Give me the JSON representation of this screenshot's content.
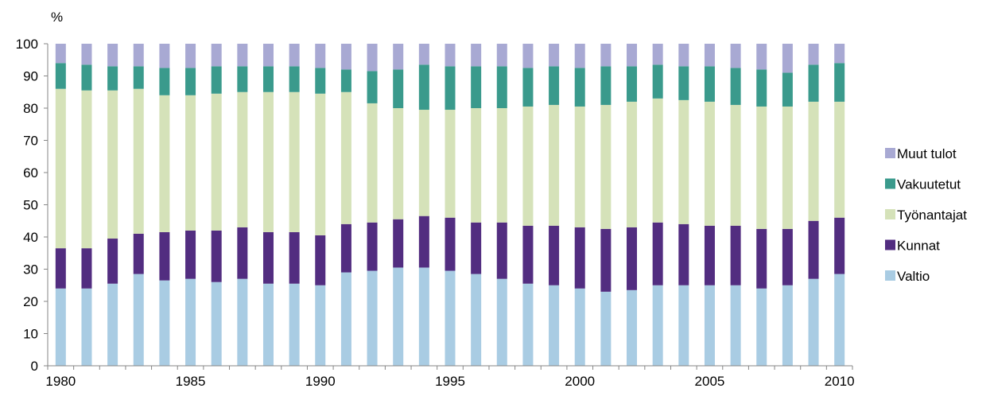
{
  "chart_data": {
    "type": "bar",
    "stacked": true,
    "percent_stacked": true,
    "ylabel": "%",
    "ylim": [
      0,
      100
    ],
    "yticks": [
      0,
      10,
      20,
      30,
      40,
      50,
      60,
      70,
      80,
      90,
      100
    ],
    "xtick_labels": [
      "1980",
      "1985",
      "1990",
      "1995",
      "2000",
      "2005",
      "2010"
    ],
    "grid": false,
    "legend_position": "right",
    "categories": [
      "1980",
      "1981",
      "1982",
      "1983",
      "1984",
      "1985",
      "1986",
      "1987",
      "1988",
      "1989",
      "1990",
      "1991",
      "1992",
      "1993",
      "1994",
      "1995",
      "1996",
      "1997",
      "1998",
      "1999",
      "2000",
      "2001",
      "2002",
      "2003",
      "2004",
      "2005",
      "2006",
      "2007",
      "2008",
      "2009",
      "2010"
    ],
    "series": [
      {
        "name": "Valtio",
        "color": "#a9cce3",
        "values": [
          24,
          24,
          25.5,
          28.5,
          26.5,
          27,
          26,
          27,
          25.5,
          25.5,
          25,
          29,
          29.5,
          30.5,
          30.5,
          29.5,
          28.5,
          27,
          25.5,
          25,
          24,
          23,
          23.5,
          25,
          25,
          25,
          25,
          24,
          25,
          27,
          28.5
        ]
      },
      {
        "name": "Kunnat",
        "color": "#522d80",
        "values": [
          12.5,
          12.5,
          14,
          12.5,
          15,
          15,
          16,
          16,
          16,
          16,
          15.5,
          15,
          15,
          15,
          16,
          16.5,
          16,
          17.5,
          18,
          18.5,
          19,
          19.5,
          19.5,
          19.5,
          19,
          18.5,
          18.5,
          18.5,
          17.5,
          18,
          17.5
        ]
      },
      {
        "name": "Työnantajat",
        "color": "#d5e2b9",
        "values": [
          49.5,
          49,
          46,
          45,
          42.5,
          42,
          42.5,
          42,
          43.5,
          43.5,
          44,
          41,
          37,
          34.5,
          33,
          33.5,
          35.5,
          35.5,
          37,
          37.5,
          37.5,
          38.5,
          39,
          38.5,
          38.5,
          38.5,
          37.5,
          38,
          38,
          37,
          36
        ]
      },
      {
        "name": "Vakuutetut",
        "color": "#3a9a8c",
        "values": [
          8,
          8,
          7.5,
          7,
          8.5,
          8.5,
          8.5,
          8,
          8,
          8,
          8,
          7,
          10,
          12,
          14,
          13.5,
          13,
          13,
          12,
          12,
          12,
          12,
          11,
          10.5,
          10.5,
          11,
          11.5,
          11.5,
          10.5,
          11.5,
          12
        ]
      },
      {
        "name": "Muut tulot",
        "color": "#a8a9d3",
        "values": [
          6,
          6.5,
          7,
          7,
          7.5,
          7.5,
          7,
          7,
          7,
          7,
          7.5,
          8,
          8.5,
          8,
          6.5,
          7,
          7,
          7,
          7.5,
          7,
          7.5,
          7,
          7,
          6.5,
          7,
          7,
          7.5,
          8,
          9,
          6.5,
          6
        ]
      }
    ]
  }
}
